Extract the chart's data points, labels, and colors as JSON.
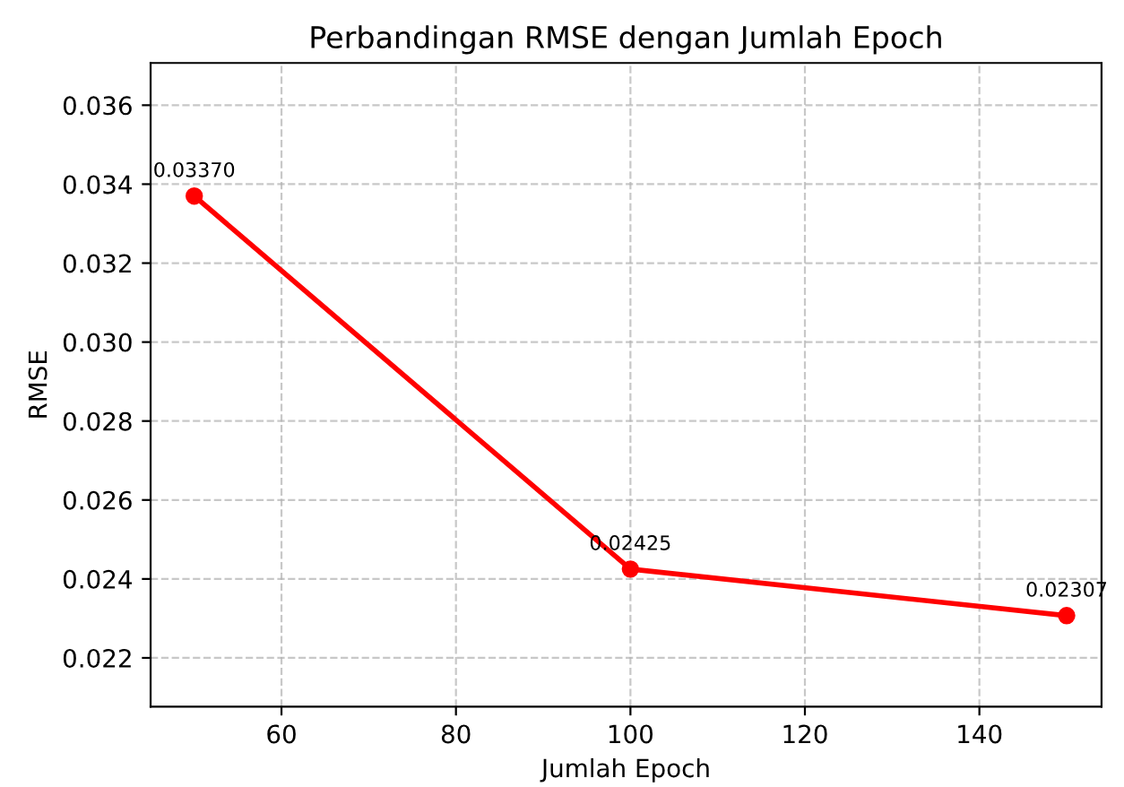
{
  "chart_data": {
    "type": "line",
    "title": "Perbandingan RMSE dengan Jumlah Epoch",
    "xlabel": "Jumlah Epoch",
    "ylabel": "RMSE",
    "x": [
      50,
      100,
      150
    ],
    "series": [
      {
        "color": "#ff0000",
        "values": [
          0.0337,
          0.02425,
          0.02307
        ],
        "value_labels": [
          "0.03370",
          "0.02425",
          "0.02307"
        ]
      }
    ],
    "xlim": [
      45,
      154
    ],
    "xticks": [
      60,
      80,
      100,
      120,
      140
    ],
    "ylim": [
      0.020763,
      0.03707
    ],
    "yticks": [
      {
        "value": 0.022,
        "label": "0.022"
      },
      {
        "value": 0.024,
        "label": "0.024"
      },
      {
        "value": 0.026,
        "label": "0.026"
      },
      {
        "value": 0.028,
        "label": "0.028"
      },
      {
        "value": 0.03,
        "label": "0.030"
      },
      {
        "value": 0.032,
        "label": "0.032"
      },
      {
        "value": 0.034,
        "label": "0.034"
      },
      {
        "value": 0.036,
        "label": "0.036"
      }
    ],
    "grid": true,
    "marker": "circle",
    "line_style": "solid",
    "legend": false
  }
}
